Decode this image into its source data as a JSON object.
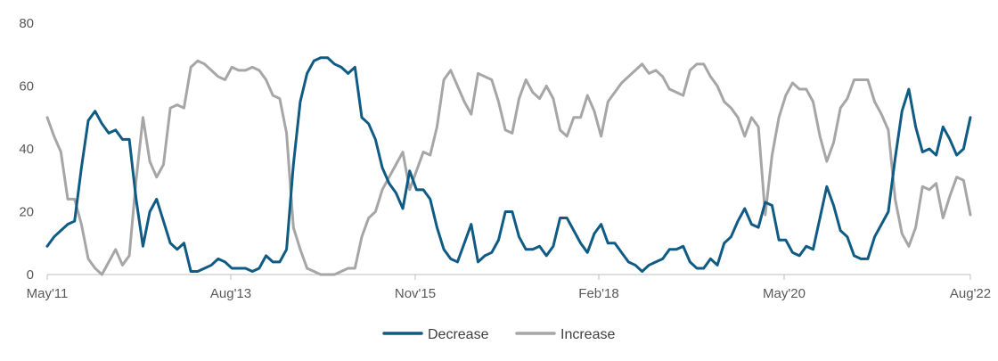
{
  "chart_data": {
    "type": "line",
    "title": "",
    "xlabel": "",
    "ylabel": "",
    "ylim": [
      0,
      80
    ],
    "yticks": [
      0,
      20,
      40,
      60,
      80
    ],
    "x_tick_labels": [
      "May'11",
      "Aug'13",
      "Nov'15",
      "Feb'18",
      "May'20",
      "Aug'22"
    ],
    "x_start": "May'11",
    "x_end": "Aug'22",
    "grid": false,
    "legend_position": "bottom-center",
    "series": [
      {
        "name": "Decrease",
        "color": "#0f5b84",
        "values": [
          9,
          12,
          14,
          16,
          17,
          34,
          49,
          52,
          48,
          45,
          46,
          43,
          43,
          24,
          9,
          20,
          24,
          17,
          10,
          8,
          10,
          1,
          1,
          2,
          3,
          5,
          4,
          2,
          2,
          2,
          1,
          2,
          6,
          4,
          4,
          8,
          35,
          55,
          64,
          68,
          69,
          69,
          67,
          66,
          64,
          66,
          50,
          48,
          43,
          34,
          29,
          26,
          21,
          33,
          27,
          27,
          24,
          15,
          8,
          5,
          4,
          10,
          16,
          4,
          6,
          7,
          11,
          20,
          20,
          12,
          8,
          8,
          9,
          6,
          9,
          18,
          18,
          14,
          10,
          7,
          13,
          16,
          10,
          10,
          7,
          4,
          3,
          1,
          3,
          4,
          5,
          8,
          8,
          9,
          4,
          2,
          2,
          5,
          3,
          10,
          12,
          17,
          21,
          16,
          15,
          23,
          22,
          11,
          11,
          7,
          6,
          9,
          8,
          18,
          28,
          22,
          14,
          12,
          6,
          5,
          5,
          12,
          16,
          20,
          37,
          52,
          59,
          47,
          39,
          40,
          38,
          47,
          43,
          38,
          40,
          50
        ]
      },
      {
        "name": "Increase",
        "color": "#a6a6a6",
        "values": [
          50,
          44,
          39,
          24,
          24,
          16,
          5,
          2,
          0,
          4,
          8,
          3,
          6,
          30,
          50,
          36,
          31,
          35,
          53,
          54,
          53,
          66,
          68,
          67,
          65,
          63,
          62,
          66,
          65,
          65,
          66,
          65,
          62,
          57,
          56,
          45,
          15,
          8,
          2,
          1,
          0,
          0,
          0,
          1,
          2,
          2,
          12,
          18,
          20,
          27,
          31,
          35,
          39,
          27,
          33,
          39,
          38,
          47,
          62,
          65,
          60,
          55,
          51,
          64,
          63,
          62,
          55,
          46,
          45,
          56,
          62,
          58,
          56,
          60,
          56,
          46,
          44,
          50,
          50,
          57,
          52,
          44,
          55,
          58,
          61,
          63,
          65,
          67,
          64,
          65,
          63,
          59,
          58,
          57,
          65,
          67,
          67,
          63,
          60,
          55,
          53,
          50,
          44,
          50,
          47,
          19,
          38,
          50,
          57,
          61,
          59,
          59,
          55,
          44,
          36,
          42,
          53,
          56,
          62,
          62,
          62,
          55,
          51,
          46,
          24,
          13,
          9,
          15,
          28,
          27,
          29,
          18,
          25,
          31,
          30,
          19
        ]
      }
    ]
  }
}
